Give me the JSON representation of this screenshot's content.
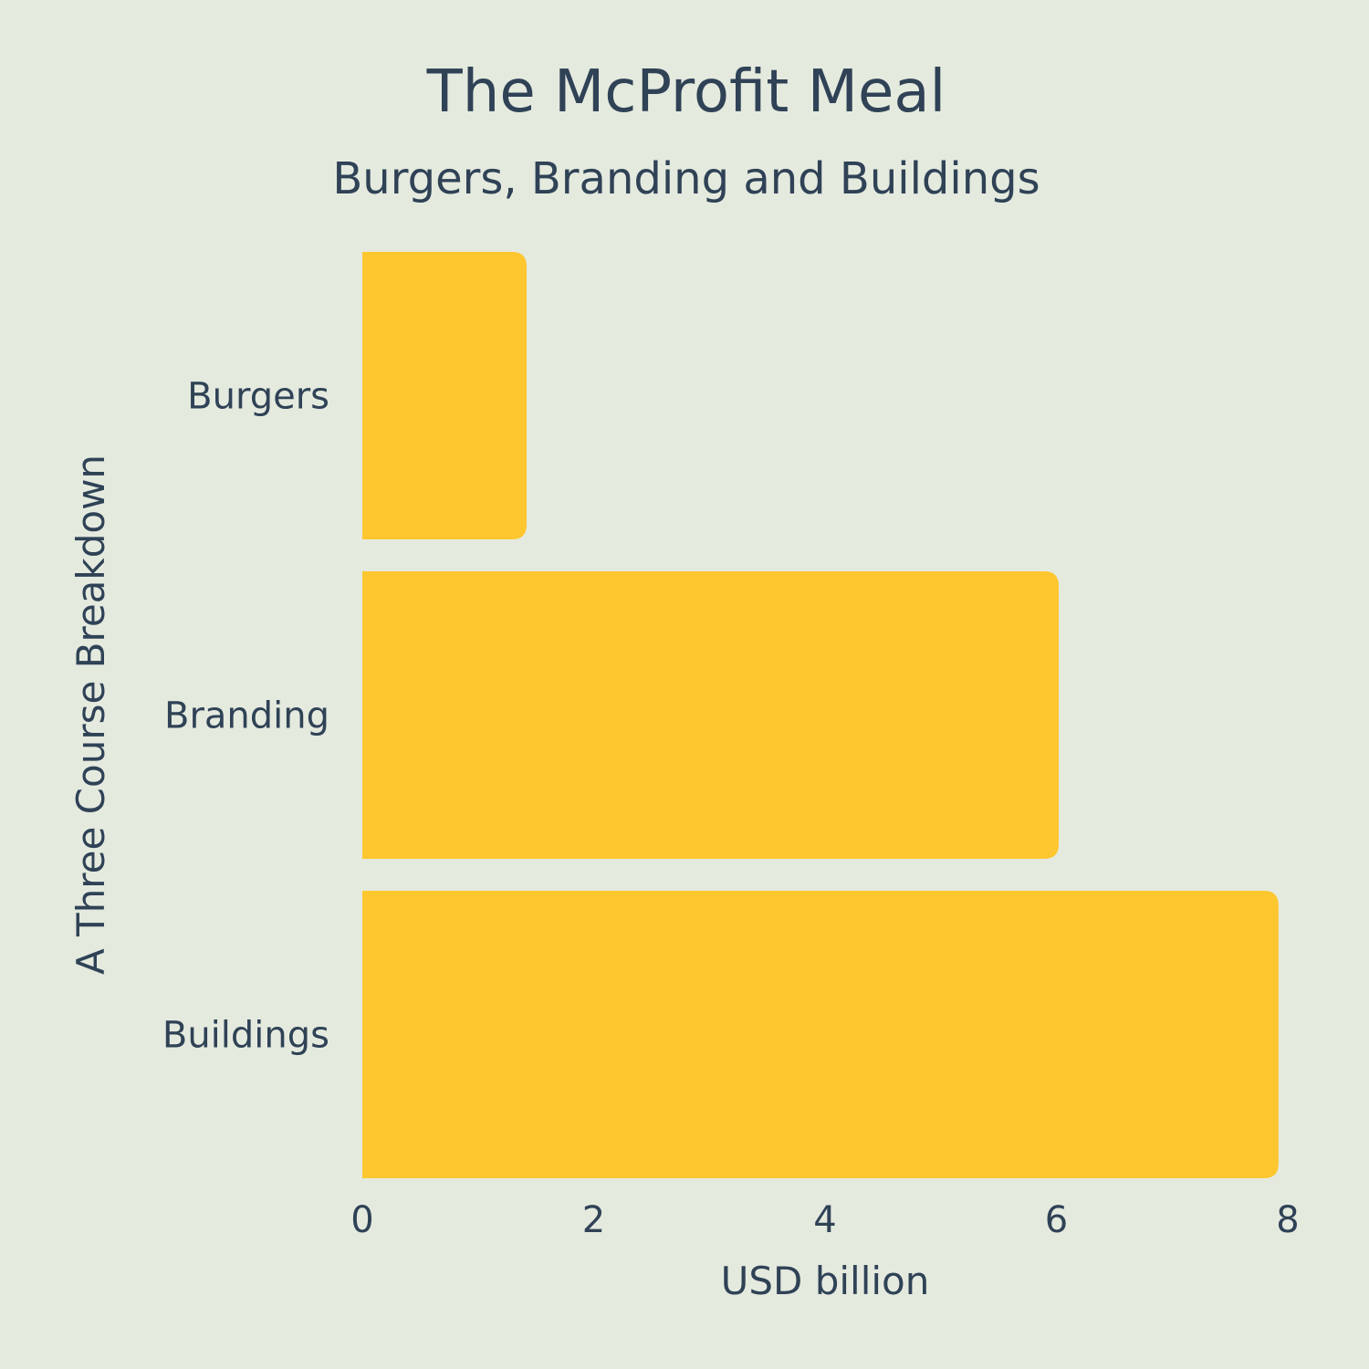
{
  "chart_data": {
    "type": "bar",
    "orientation": "horizontal",
    "title": "The McProfit Meal",
    "subtitle": "Burgers, Branding and Buildings",
    "categories": [
      "Burgers",
      "Branding",
      "Buildings"
    ],
    "values": [
      1.42,
      6.02,
      7.92
    ],
    "xlabel": "USD billion",
    "ylabel": "A Three Course Breakdown",
    "xlim": [
      0,
      8
    ],
    "xticks": [
      "0",
      "2",
      "4",
      "6",
      "8"
    ],
    "grid": false,
    "legend": "none",
    "colors": {
      "bar": "#fec62f",
      "background": "#e5eadf",
      "text": "#2f4256"
    }
  }
}
